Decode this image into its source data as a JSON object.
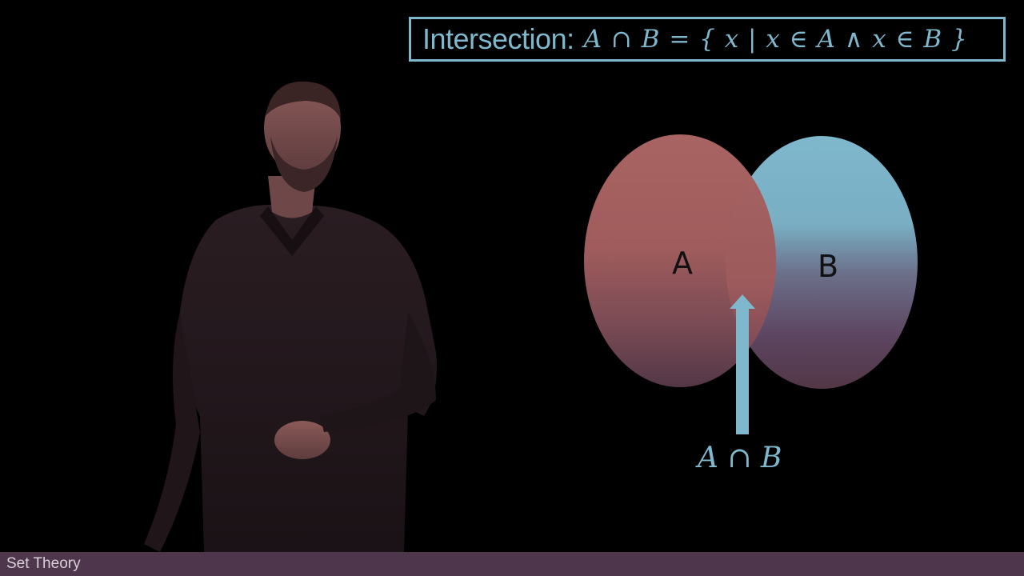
{
  "title": {
    "word": "Intersection:",
    "formula": "A ∩ B = { x | x ∈ A ∧ x ∈ B }"
  },
  "venn": {
    "set_a_label": "A",
    "set_b_label": "B",
    "intersection_label": "A ∩ B",
    "colors": {
      "set_a": "#a86462",
      "set_b": "#7fb7cc",
      "arrow": "#7fb7cc"
    }
  },
  "caption": {
    "text": "Set Theory"
  }
}
